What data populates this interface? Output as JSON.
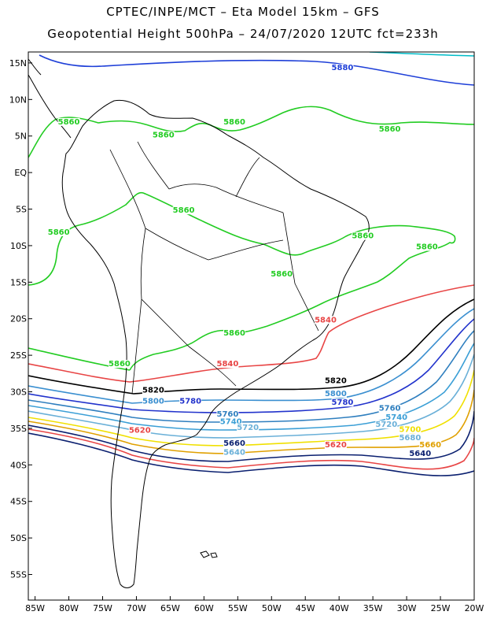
{
  "header": {
    "title_line1": "CPTEC/INPE/MCT –  Eta Model 15km – GFS",
    "title_line2": "Geopotential Height 500hPa – 24/07/2020 12UTC fct=233h"
  },
  "map": {
    "lon_range": [
      -86,
      -20
    ],
    "lat_range": [
      -58.5,
      16.5
    ],
    "lat_ticks": [
      "15N",
      "10N",
      "5N",
      "EQ",
      "5S",
      "10S",
      "15S",
      "20S",
      "25S",
      "30S",
      "35S",
      "40S",
      "45S",
      "50S",
      "55S"
    ],
    "lat_values": [
      15,
      10,
      5,
      0,
      -5,
      -10,
      -15,
      -20,
      -25,
      -30,
      -35,
      -40,
      -45,
      -50,
      -55
    ],
    "lon_ticks": [
      "85W",
      "80W",
      "75W",
      "70W",
      "65W",
      "60W",
      "55W",
      "50W",
      "45W",
      "40W",
      "35W",
      "30W",
      "25W",
      "20W"
    ],
    "lon_values": [
      -85,
      -80,
      -75,
      -70,
      -65,
      -60,
      -55,
      -50,
      -45,
      -40,
      -35,
      -30,
      -25,
      -20
    ]
  },
  "contours": {
    "colors": {
      "5900": "#00bcc8",
      "5880": "#1e3fd8",
      "5860": "#22cc22",
      "5840": "#e84545",
      "5820": "#000000",
      "5800": "#3a8fd0",
      "5780": "#2233cc",
      "5760": "#2f7fbf",
      "5740": "#3b9fd6",
      "5720": "#6ab0d8",
      "5700": "#f0e000",
      "5680": "#e0a000",
      "5660": "#0a1f6f"
    },
    "labels": [
      {
        "text": "5880",
        "lon": -39.5,
        "lat": 14.0,
        "color_key": "5880"
      },
      {
        "text": "5860",
        "lon": -80.0,
        "lat": 6.6,
        "color_key": "5860"
      },
      {
        "text": "5860",
        "lon": -66.0,
        "lat": 4.8,
        "color_key": "5860"
      },
      {
        "text": "5860",
        "lon": -55.5,
        "lat": 6.6,
        "color_key": "5860"
      },
      {
        "text": "5860",
        "lon": -32.5,
        "lat": 5.6,
        "color_key": "5860"
      },
      {
        "text": "5860",
        "lon": -63.0,
        "lat": -5.5,
        "color_key": "5860"
      },
      {
        "text": "5860",
        "lon": -81.5,
        "lat": -8.5,
        "color_key": "5860"
      },
      {
        "text": "5860",
        "lon": -36.5,
        "lat": -9.0,
        "color_key": "5860"
      },
      {
        "text": "5860",
        "lon": -27.0,
        "lat": -10.5,
        "color_key": "5860"
      },
      {
        "text": "5860",
        "lon": -48.5,
        "lat": -14.2,
        "color_key": "5860"
      },
      {
        "text": "5860",
        "lon": -55.5,
        "lat": -22.3,
        "color_key": "5860"
      },
      {
        "text": "5860",
        "lon": -72.5,
        "lat": -26.5,
        "color_key": "5860"
      },
      {
        "text": "5840",
        "lon": -42.0,
        "lat": -20.5,
        "color_key": "5840"
      },
      {
        "text": "5840",
        "lon": -56.5,
        "lat": -26.5,
        "color_key": "5840"
      },
      {
        "text": "5820",
        "lon": -67.5,
        "lat": -30.1,
        "color_key": "5820"
      },
      {
        "text": "5820",
        "lon": -40.5,
        "lat": -28.8,
        "color_key": "5820"
      },
      {
        "text": "5800",
        "lon": -67.5,
        "lat": -31.6,
        "color_key": "5800"
      },
      {
        "text": "5800",
        "lon": -40.5,
        "lat": -30.6,
        "color_key": "5800"
      },
      {
        "text": "5780",
        "lon": -62.0,
        "lat": -31.6,
        "color_key": "5780"
      },
      {
        "text": "5780",
        "lon": -39.5,
        "lat": -31.8,
        "color_key": "5780"
      },
      {
        "text": "5760",
        "lon": -56.5,
        "lat": -33.4,
        "color_key": "5760"
      },
      {
        "text": "5760",
        "lon": -32.5,
        "lat": -32.6,
        "color_key": "5760"
      },
      {
        "text": "5740",
        "lon": -56.0,
        "lat": -34.4,
        "color_key": "5740"
      },
      {
        "text": "5740",
        "lon": -31.5,
        "lat": -33.8,
        "color_key": "5740"
      },
      {
        "text": "5720",
        "lon": -53.5,
        "lat": -35.2,
        "color_key": "5720"
      },
      {
        "text": "5720",
        "lon": -33.0,
        "lat": -34.8,
        "color_key": "5720"
      },
      {
        "text": "5700",
        "lon": -29.5,
        "lat": -35.5,
        "color_key": "5700"
      },
      {
        "text": "5680",
        "lon": -29.5,
        "lat": -36.6,
        "color_key": "5720"
      },
      {
        "text": "5660",
        "lon": -55.5,
        "lat": -37.4,
        "color_key": "5660"
      },
      {
        "text": "5660",
        "lon": -26.5,
        "lat": -37.6,
        "color_key": "5680"
      },
      {
        "text": "5640",
        "lon": -55.5,
        "lat": -38.6,
        "color_key": "5720"
      },
      {
        "text": "5640",
        "lon": -28.0,
        "lat": -38.8,
        "color_key": "5660"
      },
      {
        "text": "5620",
        "lon": -69.5,
        "lat": -35.6,
        "color_key": "5840"
      },
      {
        "text": "5620",
        "lon": -40.5,
        "lat": -37.6,
        "color_key": "5840"
      }
    ]
  }
}
